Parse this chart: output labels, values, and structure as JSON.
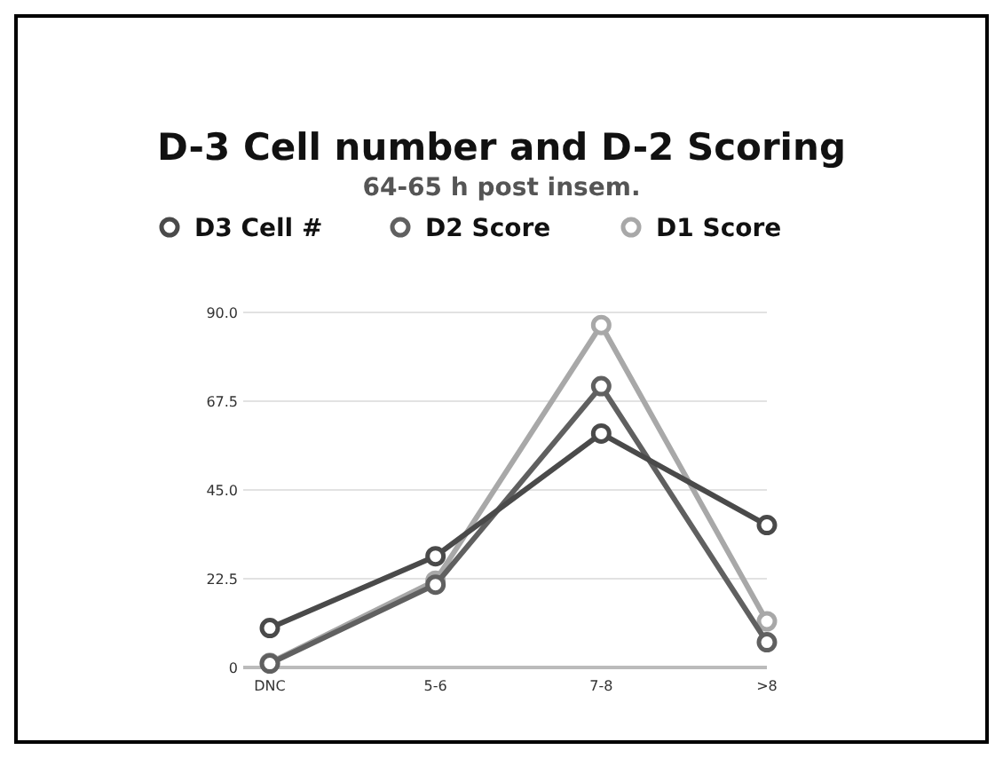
{
  "chart_data": {
    "type": "line",
    "title": "D-3 Cell number and D-2 Scoring",
    "subtitle": "64-65 h post insem.",
    "categories": [
      "DNC",
      "5-6",
      "7-8",
      ">8"
    ],
    "series": [
      {
        "name": "D3 Cell #",
        "color": "#4a4a4a",
        "values": [
          10,
          28.2,
          59.3,
          36.1
        ]
      },
      {
        "name": "D2 Score",
        "color": "#606060",
        "values": [
          1,
          21,
          71.3,
          6.4
        ]
      },
      {
        "name": "D1 Score",
        "color": "#a8a8a8",
        "values": [
          1.2,
          22,
          86.8,
          11.7
        ]
      }
    ],
    "ylim": [
      0,
      90
    ],
    "yticks": [
      {
        "value": 0,
        "label": "0"
      },
      {
        "value": 22.5,
        "label": "22.5"
      },
      {
        "value": 45,
        "label": "45.0"
      },
      {
        "value": 67.5,
        "label": "67.5"
      },
      {
        "value": 90,
        "label": "90.0"
      }
    ],
    "grid": "y",
    "legend": "top",
    "marker": "circle",
    "line_style": "solid"
  }
}
